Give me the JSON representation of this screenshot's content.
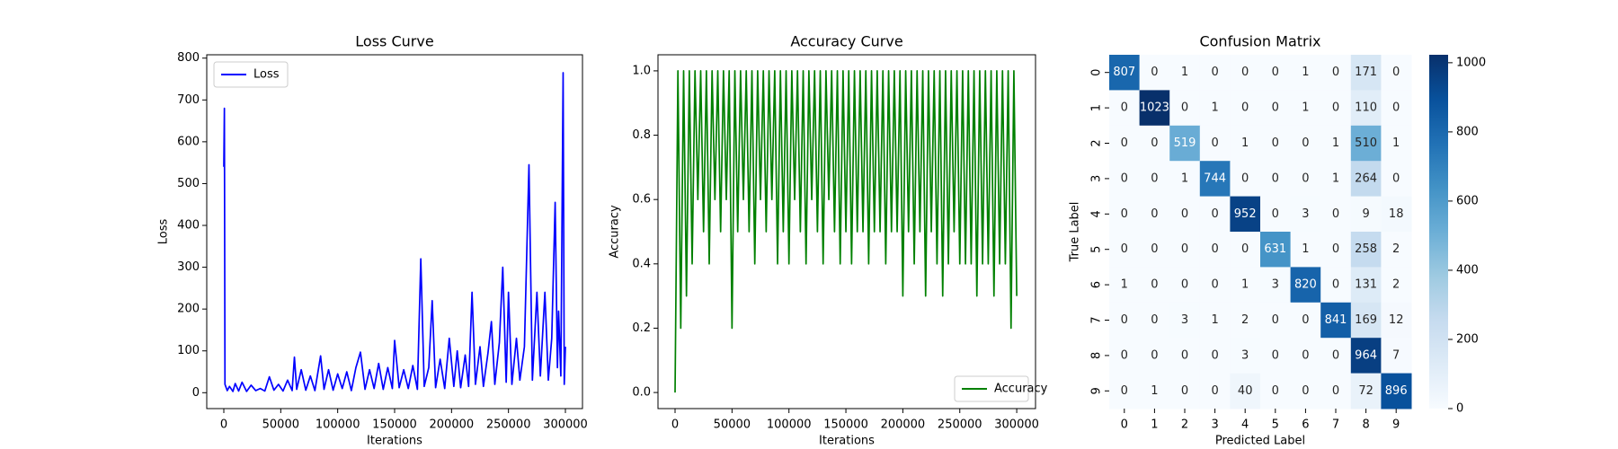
{
  "chart_data": [
    {
      "type": "line",
      "title": "Loss Curve",
      "x_label": "Iterations",
      "y_label": "Loss",
      "x": [
        0,
        500,
        1000,
        3000,
        5000,
        8000,
        10000,
        13000,
        16000,
        20000,
        24000,
        28000,
        32000,
        36000,
        40000,
        44000,
        48000,
        52000,
        56000,
        60000,
        62000,
        64000,
        68000,
        72000,
        76000,
        80000,
        85000,
        88000,
        92000,
        96000,
        100000,
        104000,
        108000,
        112000,
        116000,
        120000,
        124000,
        128000,
        132000,
        136000,
        140000,
        144000,
        148000,
        150000,
        154000,
        158000,
        162000,
        166000,
        170000,
        173000,
        176000,
        180000,
        183000,
        186000,
        190000,
        194000,
        198000,
        202000,
        205000,
        208000,
        212000,
        215000,
        218000,
        221000,
        225000,
        228000,
        232000,
        235000,
        238000,
        242000,
        245000,
        248000,
        250000,
        253000,
        257000,
        260000,
        264000,
        268000,
        271000,
        275000,
        278000,
        282000,
        285000,
        288000,
        291000,
        293000,
        294000,
        296000,
        298000,
        299000,
        300000
      ],
      "series": [
        {
          "name": "Loss",
          "color": "#0000ff",
          "values": [
            540,
            680,
            20,
            5,
            15,
            3,
            22,
            4,
            25,
            3,
            18,
            5,
            10,
            4,
            38,
            6,
            20,
            4,
            30,
            5,
            85,
            8,
            55,
            6,
            40,
            5,
            88,
            8,
            55,
            6,
            45,
            10,
            50,
            5,
            60,
            97,
            8,
            55,
            10,
            70,
            8,
            60,
            10,
            125,
            12,
            55,
            10,
            65,
            8,
            320,
            15,
            60,
            220,
            12,
            80,
            10,
            130,
            15,
            100,
            12,
            90,
            15,
            240,
            20,
            110,
            15,
            95,
            170,
            20,
            120,
            300,
            25,
            240,
            20,
            130,
            30,
            110,
            545,
            30,
            240,
            40,
            240,
            30,
            130,
            455,
            60,
            195,
            40,
            765,
            20,
            110
          ]
        }
      ],
      "xlim": [
        -15000,
        315000
      ],
      "ylim": [
        -38,
        808
      ],
      "xticks": [
        0,
        50000,
        100000,
        150000,
        200000,
        250000,
        300000
      ],
      "yticks": [
        0,
        100,
        200,
        300,
        400,
        500,
        600,
        700,
        800
      ],
      "legend": "upper left"
    },
    {
      "type": "line",
      "title": "Accuracy Curve",
      "x_label": "Iterations",
      "y_label": "Accuracy",
      "x": [
        0,
        2500,
        5000,
        7500,
        10000,
        12500,
        15000,
        17500,
        20000,
        22500,
        25000,
        27500,
        30000,
        32500,
        35000,
        37500,
        40000,
        42500,
        45000,
        47500,
        50000,
        52500,
        55000,
        57500,
        60000,
        62500,
        65000,
        67500,
        70000,
        72500,
        75000,
        77500,
        80000,
        82500,
        85000,
        87500,
        90000,
        92500,
        95000,
        97500,
        100000,
        102500,
        105000,
        107500,
        110000,
        112500,
        115000,
        117500,
        120000,
        122500,
        125000,
        127500,
        130000,
        132500,
        135000,
        137500,
        140000,
        142500,
        145000,
        147500,
        150000,
        152500,
        155000,
        157500,
        160000,
        162500,
        165000,
        167500,
        170000,
        172500,
        175000,
        177500,
        180000,
        182500,
        185000,
        187500,
        190000,
        192500,
        195000,
        197500,
        200000,
        202500,
        205000,
        207500,
        210000,
        212500,
        215000,
        217500,
        220000,
        222500,
        225000,
        227500,
        230000,
        232500,
        235000,
        237500,
        240000,
        242500,
        245000,
        247500,
        250000,
        252500,
        255000,
        257500,
        260000,
        262500,
        265000,
        267500,
        270000,
        272500,
        275000,
        277500,
        280000,
        282500,
        285000,
        287500,
        290000,
        292500,
        295000,
        297500,
        300000
      ],
      "series": [
        {
          "name": "Accuracy",
          "color": "#008000",
          "values": [
            0.0,
            1,
            0.2,
            1,
            0.3,
            1,
            0.4,
            1,
            0.6,
            1,
            0.5,
            1,
            0.4,
            1,
            0.6,
            1,
            0.5,
            1,
            0.6,
            1,
            0.2,
            1,
            0.5,
            1,
            0.6,
            1,
            0.5,
            1,
            0.4,
            1,
            0.6,
            1,
            0.5,
            1,
            0.6,
            1,
            0.4,
            1,
            0.5,
            1,
            0.4,
            1,
            0.6,
            1,
            0.5,
            1,
            0.4,
            1,
            0.6,
            1,
            0.5,
            1,
            0.4,
            1,
            0.6,
            1,
            0.5,
            1,
            0.4,
            1,
            0.5,
            1,
            0.4,
            1,
            0.5,
            1,
            0.5,
            1,
            0.4,
            1,
            0.5,
            1,
            0.5,
            1,
            0.4,
            1,
            0.5,
            1,
            0.5,
            1,
            0.3,
            1,
            0.5,
            1,
            0.4,
            1,
            0.5,
            1,
            0.3,
            1,
            0.5,
            1,
            0.4,
            1,
            0.3,
            1,
            0.4,
            1,
            0.5,
            1,
            0.4,
            1,
            0.4,
            1,
            0.4,
            1,
            0.3,
            1,
            0.4,
            1,
            0.4,
            1,
            0.3,
            1,
            0.4,
            1,
            0.4,
            1,
            0.2,
            1,
            0.3
          ]
        }
      ],
      "xlim": [
        -15000,
        316500
      ],
      "ylim": [
        -0.05,
        1.05
      ],
      "xticks": [
        0,
        50000,
        100000,
        150000,
        200000,
        250000,
        300000
      ],
      "yticks": [
        {
          "value": 0,
          "label": "0.0"
        },
        0.2,
        0.4,
        0.6,
        0.8,
        {
          "value": 1,
          "label": "1.0"
        }
      ],
      "legend": "lower right"
    },
    {
      "type": "heatmap",
      "title": "Confusion Matrix",
      "x_label": "Predicted Label",
      "y_label": "True Label",
      "x_categories": [
        "0",
        "1",
        "2",
        "3",
        "4",
        "5",
        "6",
        "7",
        "8",
        "9"
      ],
      "y_categories": [
        "0",
        "1",
        "2",
        "3",
        "4",
        "5",
        "6",
        "7",
        "8",
        "9"
      ],
      "values": [
        [
          807,
          0,
          1,
          0,
          0,
          0,
          1,
          0,
          171,
          0
        ],
        [
          0,
          1023,
          0,
          1,
          0,
          0,
          1,
          0,
          110,
          0
        ],
        [
          0,
          0,
          519,
          0,
          1,
          0,
          0,
          1,
          510,
          1
        ],
        [
          0,
          0,
          1,
          744,
          0,
          0,
          0,
          1,
          264,
          0
        ],
        [
          0,
          0,
          0,
          0,
          952,
          0,
          3,
          0,
          9,
          18
        ],
        [
          0,
          0,
          0,
          0,
          0,
          631,
          1,
          0,
          258,
          2
        ],
        [
          1,
          0,
          0,
          0,
          1,
          3,
          820,
          0,
          131,
          2
        ],
        [
          0,
          0,
          3,
          1,
          2,
          0,
          0,
          841,
          169,
          12
        ],
        [
          0,
          0,
          0,
          0,
          3,
          0,
          0,
          0,
          964,
          7
        ],
        [
          0,
          1,
          0,
          0,
          40,
          0,
          0,
          0,
          72,
          896
        ]
      ],
      "colormap": "Blues",
      "colorbar_lim": [
        0,
        1023
      ],
      "colorbar_ticks": [
        0,
        200,
        400,
        600,
        800,
        1000
      ]
    }
  ]
}
